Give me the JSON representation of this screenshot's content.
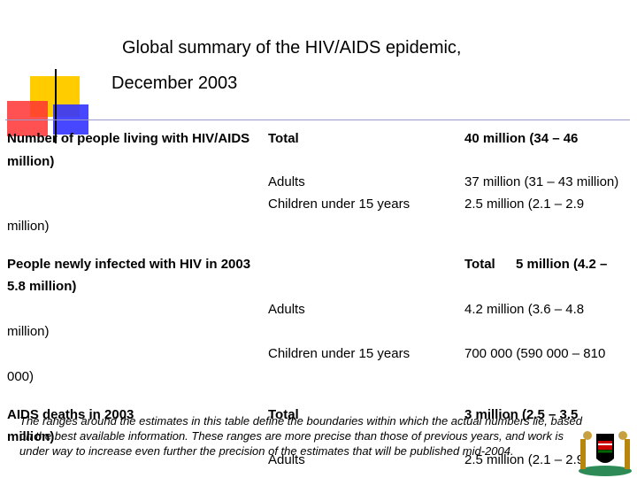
{
  "title": {
    "line1": "Global summary of the HIV/AIDS epidemic,",
    "line2": "December 2003"
  },
  "living": {
    "heading": "Number of people living with HIV/AIDS",
    "total_label": "Total",
    "total_value_a": "40 million (34 – 46",
    "total_value_b": "million)",
    "adults_label": "Adults",
    "adults_value": "37 million (31 – 43 million)",
    "children_label": "Children under 15 years",
    "children_value_a": "2.5 million (2.1 – 2.9",
    "children_value_b": "million)"
  },
  "newly": {
    "heading": "People newly infected with HIV in 2003",
    "total_label": "Total",
    "total_value_a": "5 million (4.2 –",
    "total_value_b": "5.8 million)",
    "adults_label": "Adults",
    "adults_value_a": "4.2 million (3.6 – 4.8",
    "adults_value_b": "million)",
    "children_label": "Children under 15 years",
    "children_value_a": "700 000 (590 000 – 810",
    "children_value_b": "000)"
  },
  "deaths": {
    "heading": "AIDS deaths in 2003",
    "total_label": "Total",
    "total_value_a": "3 million (2.5 – 3.5",
    "total_value_b": "million)",
    "adults_label": "Adults",
    "adults_value": "2.5 million (2.1 – 2.9"
  },
  "footnote": {
    "line1": "The ranges around the estimates in this table define the boundaries within which the actual numbers lie, based",
    "line2": "on the best available information. These ranges are more precise than those of previous years, and work is",
    "line3": "under way to increase even further the precision of the estimates that will be published mid-2004."
  },
  "colors": {
    "yellow": "#ffcc00",
    "red": "#ff3333",
    "blue": "#3333ff",
    "rule": "#9999cc"
  }
}
